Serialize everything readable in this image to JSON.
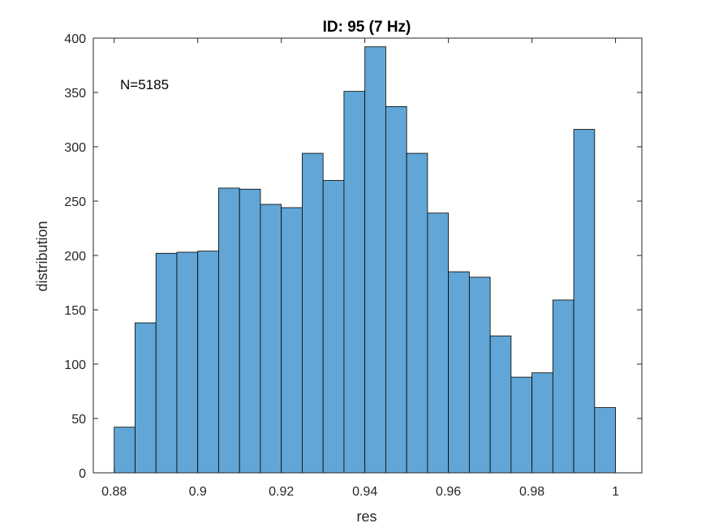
{
  "chart_data": {
    "type": "bar",
    "title": "ID: 95 (7 Hz)",
    "xlabel": "res",
    "ylabel": "distribution",
    "annotation": "N=5185",
    "xlim": [
      0.875,
      1.0063
    ],
    "ylim": [
      0,
      400
    ],
    "xticks": [
      0.88,
      0.9,
      0.92,
      0.94,
      0.96,
      0.98,
      1.0
    ],
    "xtick_labels": [
      "0.88",
      "0.9",
      "0.92",
      "0.94",
      "0.96",
      "0.98",
      "1"
    ],
    "yticks": [
      0,
      50,
      100,
      150,
      200,
      250,
      300,
      350,
      400
    ],
    "ytick_labels": [
      "0",
      "50",
      "100",
      "150",
      "200",
      "250",
      "300",
      "350",
      "400"
    ],
    "bin_start": 0.88,
    "bin_width": 0.005,
    "values": [
      42,
      138,
      202,
      203,
      204,
      262,
      261,
      247,
      244,
      294,
      269,
      351,
      392,
      337,
      294,
      239,
      185,
      180,
      126,
      88,
      92,
      159,
      316,
      60
    ],
    "grid": false,
    "bar_color": "#61a6d6",
    "edge_color": "#000000"
  }
}
